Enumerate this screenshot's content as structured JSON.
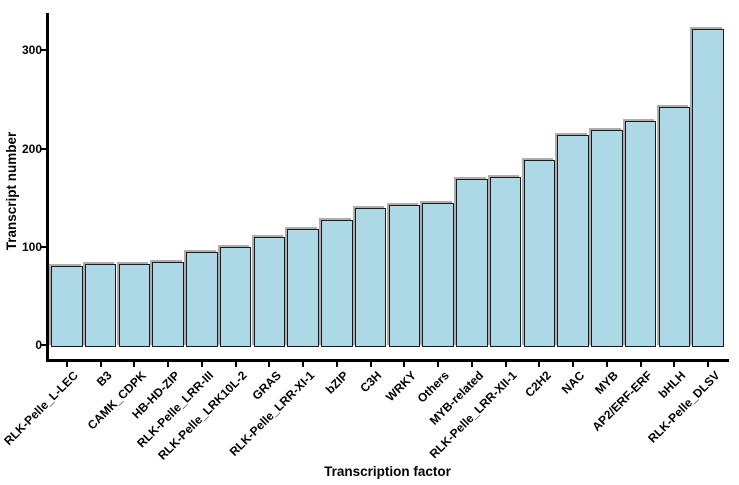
{
  "chart_data": {
    "type": "bar",
    "xlabel": "Transcription factor",
    "ylabel": "Transcript number",
    "categories": [
      "RLK-Pelle_L-LEC",
      "B3",
      "CAMK_CDPK",
      "HB-HD-ZIP",
      "RLK-Pelle_LRR-III",
      "RLK-Pelle_LRK10L-2",
      "GRAS",
      "RLK-Pelle_LRR-XI-1",
      "bZIP",
      "C3H",
      "WRKY",
      "Others",
      "MYB-related",
      "RLK-Pelle_LRR-XII-1",
      "C2H2",
      "NAC",
      "MYB",
      "AP2/ERF-ERF",
      "bHLH",
      "RLK-Pelle_DLSV"
    ],
    "values": [
      80,
      82,
      82,
      85,
      95,
      100,
      110,
      118,
      127,
      140,
      143,
      145,
      169,
      171,
      188,
      214,
      219,
      228,
      242,
      322
    ],
    "yticks": [
      0,
      100,
      200,
      300
    ],
    "ylim": [
      0,
      340
    ],
    "grid": false,
    "legend": false,
    "colors": {
      "bar_fill": "#ADD8E6",
      "bar_border": "#1a1a1a",
      "bar_shadow": "#828282",
      "axis": "#000000",
      "text": "#000000"
    }
  }
}
